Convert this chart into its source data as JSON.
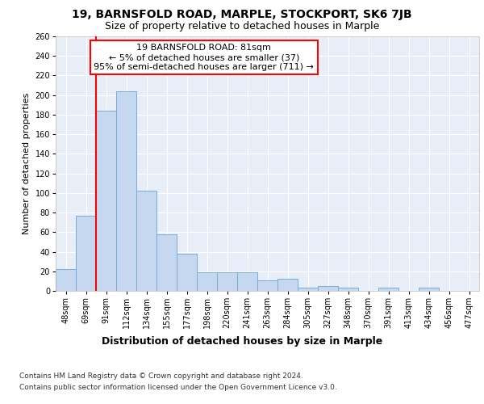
{
  "title1": "19, BARNSFOLD ROAD, MARPLE, STOCKPORT, SK6 7JB",
  "title2": "Size of property relative to detached houses in Marple",
  "xlabel": "Distribution of detached houses by size in Marple",
  "ylabel": "Number of detached properties",
  "categories": [
    "48sqm",
    "69sqm",
    "91sqm",
    "112sqm",
    "134sqm",
    "155sqm",
    "177sqm",
    "198sqm",
    "220sqm",
    "241sqm",
    "263sqm",
    "284sqm",
    "305sqm",
    "327sqm",
    "348sqm",
    "370sqm",
    "391sqm",
    "413sqm",
    "434sqm",
    "456sqm",
    "477sqm"
  ],
  "values": [
    22,
    77,
    184,
    204,
    102,
    58,
    38,
    19,
    19,
    19,
    11,
    12,
    3,
    5,
    3,
    0,
    3,
    0,
    3,
    0,
    0
  ],
  "bar_color": "#c5d8f0",
  "bar_edge_color": "#7aadd4",
  "annotation_title": "19 BARNSFOLD ROAD: 81sqm",
  "annotation_line1": "← 5% of detached houses are smaller (37)",
  "annotation_line2": "95% of semi-detached houses are larger (711) →",
  "footer1": "Contains HM Land Registry data © Crown copyright and database right 2024.",
  "footer2": "Contains public sector information licensed under the Open Government Licence v3.0.",
  "ylim": [
    0,
    260
  ],
  "yticks": [
    0,
    20,
    40,
    60,
    80,
    100,
    120,
    140,
    160,
    180,
    200,
    220,
    240,
    260
  ],
  "plot_bg": "#e8eef8",
  "title1_fontsize": 10,
  "title2_fontsize": 9,
  "xlabel_fontsize": 9,
  "ylabel_fontsize": 8,
  "tick_fontsize": 7,
  "annotation_fontsize": 8,
  "footer_fontsize": 6.5
}
